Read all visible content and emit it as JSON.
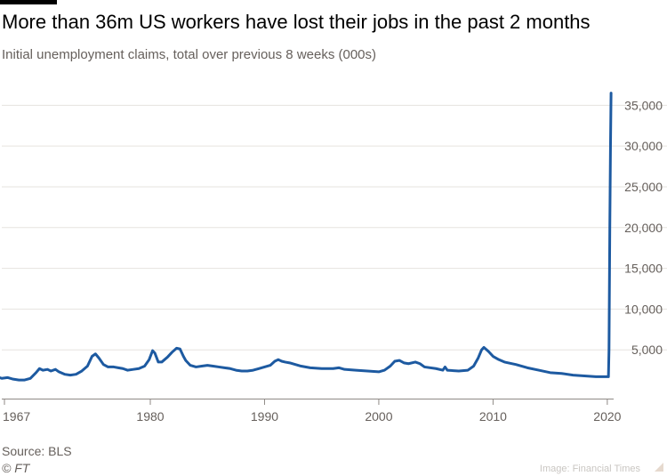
{
  "header": {
    "title": "More than 36m US workers have lost their jobs in the past 2 months",
    "subtitle": "Initial unemployment claims, total over previous 8 weeks (000s)"
  },
  "footer": {
    "source": "Source: BLS",
    "copyright": "© FT",
    "image_credit": "Image: Financial Times"
  },
  "colors": {
    "line": "#1d5aa1",
    "grid": "#e6e3df",
    "tick_text": "#66605c",
    "background": "#ffffff"
  },
  "chart_data": {
    "type": "line",
    "title": "More than 36m US workers have lost their jobs in the past 2 months",
    "subtitle": "Initial unemployment claims, total over previous 8 weeks (000s)",
    "xlabel": "",
    "ylabel": "",
    "xlim": [
      1967,
      2020.4
    ],
    "ylim": [
      0,
      37000
    ],
    "y_axis_side": "right",
    "grid": true,
    "x_ticks": [
      1967,
      1980,
      1990,
      2000,
      2010,
      2020
    ],
    "x_tick_labels": [
      "1967",
      "1980",
      "1990",
      "2000",
      "2010",
      "2020"
    ],
    "y_ticks": [
      5000,
      10000,
      15000,
      20000,
      25000,
      30000,
      35000
    ],
    "y_tick_labels": [
      "5,000",
      "10,000",
      "15,000",
      "20,000",
      "25,000",
      "30,000",
      "35,000"
    ],
    "series": [
      {
        "x": [
          1966.6,
          1967,
          1967.5,
          1968,
          1968.5,
          1969,
          1969.5,
          1970,
          1970.3,
          1970.6,
          1971,
          1971.3,
          1971.7,
          1972,
          1972.5,
          1973,
          1973.5,
          1974,
          1974.5,
          1974.9,
          1975.2,
          1975.5,
          1975.9,
          1976.3,
          1976.8,
          1977.2,
          1977.6,
          1978,
          1978.5,
          1979,
          1979.5,
          1979.9,
          1980.2,
          1980.4,
          1980.7,
          1981,
          1981.5,
          1981.9,
          1982.3,
          1982.6,
          1982.9,
          1983.1,
          1983.5,
          1984,
          1984.5,
          1985,
          1985.5,
          1986,
          1986.5,
          1987,
          1987.5,
          1988,
          1988.5,
          1989,
          1989.5,
          1990,
          1990.5,
          1990.9,
          1991.2,
          1991.5,
          1991.8,
          1992.2,
          1992.7,
          1993.2,
          1994,
          1995,
          1996,
          1996.5,
          1997,
          1998,
          1999,
          2000,
          2000.5,
          2001,
          2001.4,
          2001.8,
          2002.2,
          2002.6,
          2003.2,
          2003.6,
          2004,
          2005,
          2005.6,
          2005.8,
          2006,
          2007,
          2007.8,
          2008.3,
          2008.7,
          2009.0,
          2009.2,
          2009.6,
          2010,
          2010.5,
          2011,
          2012,
          2013,
          2014,
          2015,
          2016,
          2017,
          2018,
          2019,
          2019.5,
          2019.9,
          2020.1,
          2020.15,
          2020.22,
          2020.28,
          2020.33
        ],
        "values": [
          1700,
          1500,
          1600,
          1400,
          1300,
          1300,
          1500,
          2200,
          2700,
          2500,
          2600,
          2400,
          2600,
          2300,
          2000,
          1900,
          2000,
          2400,
          3000,
          4200,
          4500,
          4000,
          3200,
          2900,
          2900,
          2800,
          2700,
          2500,
          2600,
          2700,
          3000,
          3800,
          4900,
          4600,
          3500,
          3500,
          4100,
          4700,
          5200,
          5100,
          4200,
          3700,
          3100,
          2900,
          3000,
          3100,
          3000,
          2900,
          2800,
          2700,
          2500,
          2400,
          2400,
          2500,
          2700,
          2900,
          3100,
          3600,
          3800,
          3600,
          3500,
          3400,
          3200,
          3000,
          2800,
          2700,
          2700,
          2800,
          2600,
          2500,
          2400,
          2300,
          2500,
          3000,
          3600,
          3700,
          3400,
          3300,
          3500,
          3300,
          2900,
          2700,
          2500,
          2900,
          2500,
          2400,
          2500,
          3000,
          4000,
          5000,
          5300,
          4800,
          4200,
          3800,
          3500,
          3200,
          2800,
          2500,
          2200,
          2100,
          1900,
          1800,
          1700,
          1700,
          1700,
          1700,
          5000,
          20000,
          30000,
          36500
        ]
      }
    ]
  }
}
